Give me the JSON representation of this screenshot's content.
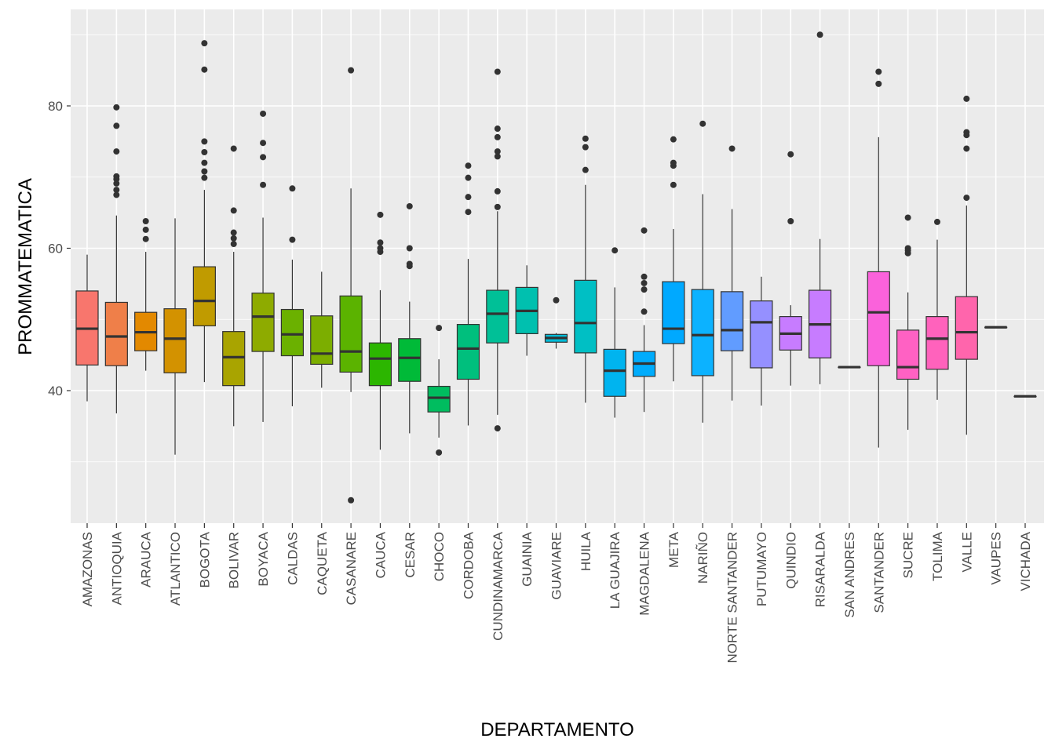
{
  "chart_data": {
    "type": "boxplot",
    "xlabel": "DEPARTAMENTO",
    "ylabel": "PROMMATEMATICA",
    "ylim": [
      21,
      93
    ],
    "y_ticks": [
      40,
      60,
      80
    ],
    "grid": true,
    "legend": "none",
    "panel_color": "#ebebeb",
    "grid_color": "#ffffff",
    "box_line_color": "#333333",
    "categories": [
      "AMAZONAS",
      "ANTIOQUIA",
      "ARAUCA",
      "ATLANTICO",
      "BOGOTA",
      "BOLIVAR",
      "BOYACA",
      "CALDAS",
      "CAQUETA",
      "CASANARE",
      "CAUCA",
      "CESAR",
      "CHOCO",
      "CORDOBA",
      "CUNDINAMARCA",
      "GUAINIA",
      "GUAVIARE",
      "HUILA",
      "LA GUAJIRA",
      "MAGDALENA",
      "META",
      "NARIÑO",
      "NORTE SANTANDER",
      "PUTUMAYO",
      "QUINDIO",
      "RISARALDA",
      "SAN ANDRES",
      "SANTANDER",
      "SUCRE",
      "TOLIMA",
      "VALLE",
      "VAUPES",
      "VICHADA"
    ],
    "boxes": [
      {
        "color": "#F8766D",
        "whisker_low": 38.5,
        "q1": 43.6,
        "median": 48.7,
        "q3": 54.0,
        "whisker_high": 59.1,
        "outliers": []
      },
      {
        "color": "#EF7F49",
        "whisker_low": 36.8,
        "q1": 43.5,
        "median": 47.6,
        "q3": 52.4,
        "whisker_high": 64.6,
        "outliers": [
          67.5,
          68.2,
          69.1,
          69.7,
          70.1,
          73.6,
          77.2,
          79.8
        ]
      },
      {
        "color": "#E38900",
        "whisker_low": 42.8,
        "q1": 45.6,
        "median": 48.2,
        "q3": 51.0,
        "whisker_high": 59.5,
        "outliers": [
          61.3,
          62.6,
          63.8
        ]
      },
      {
        "color": "#D39200",
        "whisker_low": 31.0,
        "q1": 42.5,
        "median": 47.3,
        "q3": 51.5,
        "whisker_high": 64.2,
        "outliers": []
      },
      {
        "color": "#C09B00",
        "whisker_low": 41.2,
        "q1": 49.1,
        "median": 52.6,
        "q3": 57.4,
        "whisker_high": 68.2,
        "outliers": [
          69.9,
          70.8,
          72.0,
          73.5,
          75.0,
          85.1,
          88.8
        ]
      },
      {
        "color": "#A9A400",
        "whisker_low": 35.0,
        "q1": 40.7,
        "median": 44.7,
        "q3": 48.3,
        "whisker_high": 59.5,
        "outliers": [
          60.6,
          61.4,
          62.2,
          65.3,
          74.0
        ]
      },
      {
        "color": "#8EAB00",
        "whisker_low": 35.6,
        "q1": 45.5,
        "median": 50.4,
        "q3": 53.7,
        "whisker_high": 64.3,
        "outliers": [
          68.9,
          72.8,
          74.8,
          78.9
        ]
      },
      {
        "color": "#6BB100",
        "whisker_low": 37.8,
        "q1": 44.9,
        "median": 47.9,
        "q3": 51.4,
        "whisker_high": 58.4,
        "outliers": [
          61.2,
          68.4
        ]
      },
      {
        "color": "#7CAE00",
        "whisker_low": 40.4,
        "q1": 43.7,
        "median": 45.2,
        "q3": 50.5,
        "whisker_high": 56.7,
        "outliers": []
      },
      {
        "color": "#5BB300",
        "whisker_low": 39.8,
        "q1": 42.6,
        "median": 45.5,
        "q3": 53.3,
        "whisker_high": 68.4,
        "outliers": [
          24.6,
          85.0
        ]
      },
      {
        "color": "#2CB600",
        "whisker_low": 31.7,
        "q1": 40.7,
        "median": 44.5,
        "q3": 46.7,
        "whisker_high": 54.1,
        "outliers": [
          59.5,
          60.0,
          60.8,
          64.7
        ]
      },
      {
        "color": "#00BA38",
        "whisker_low": 34.0,
        "q1": 41.3,
        "median": 44.6,
        "q3": 47.3,
        "whisker_high": 52.5,
        "outliers": [
          57.5,
          57.8,
          60.0,
          65.9
        ]
      },
      {
        "color": "#00BD5F",
        "whisker_low": 33.4,
        "q1": 37.0,
        "median": 39.0,
        "q3": 40.6,
        "whisker_high": 44.4,
        "outliers": [
          31.3,
          48.8
        ]
      },
      {
        "color": "#00BF7D",
        "whisker_low": 35.1,
        "q1": 41.6,
        "median": 45.9,
        "q3": 49.3,
        "whisker_high": 58.5,
        "outliers": [
          65.1,
          67.2,
          69.9,
          71.6
        ]
      },
      {
        "color": "#00C097",
        "whisker_low": 36.6,
        "q1": 46.7,
        "median": 50.8,
        "q3": 54.1,
        "whisker_high": 65.2,
        "outliers": [
          34.7,
          65.8,
          68.0,
          72.9,
          73.6,
          75.6,
          76.8,
          84.8
        ]
      },
      {
        "color": "#00C0AF",
        "whisker_low": 44.9,
        "q1": 48.0,
        "median": 51.2,
        "q3": 54.5,
        "whisker_high": 57.6,
        "outliers": []
      },
      {
        "color": "#00BCD8",
        "whisker_low": 45.9,
        "q1": 46.8,
        "median": 47.4,
        "q3": 47.9,
        "whisker_high": 48.1,
        "outliers": [
          52.7
        ]
      },
      {
        "color": "#00BFC4",
        "whisker_low": 38.3,
        "q1": 45.3,
        "median": 49.5,
        "q3": 55.5,
        "whisker_high": 68.9,
        "outliers": [
          71.0,
          74.2,
          75.4
        ]
      },
      {
        "color": "#00B4EF",
        "whisker_low": 36.2,
        "q1": 39.2,
        "median": 42.8,
        "q3": 45.8,
        "whisker_high": 54.5,
        "outliers": [
          59.7
        ]
      },
      {
        "color": "#00ACFC",
        "whisker_low": 37.0,
        "q1": 42.0,
        "median": 43.8,
        "q3": 45.5,
        "whisker_high": 49.2,
        "outliers": [
          51.1,
          54.2,
          55.1,
          56.0,
          62.5
        ]
      },
      {
        "color": "#00A9FF",
        "whisker_low": 41.3,
        "q1": 46.6,
        "median": 48.7,
        "q3": 55.3,
        "whisker_high": 62.7,
        "outliers": [
          68.9,
          71.6,
          72.0,
          75.3
        ]
      },
      {
        "color": "#0CB2FF",
        "whisker_low": 35.5,
        "q1": 42.1,
        "median": 47.8,
        "q3": 54.2,
        "whisker_high": 67.6,
        "outliers": [
          77.5
        ]
      },
      {
        "color": "#619CFF",
        "whisker_low": 38.6,
        "q1": 45.6,
        "median": 48.5,
        "q3": 53.9,
        "whisker_high": 65.5,
        "outliers": [
          74.0
        ]
      },
      {
        "color": "#9590FF",
        "whisker_low": 37.9,
        "q1": 43.2,
        "median": 49.6,
        "q3": 52.6,
        "whisker_high": 56.0,
        "outliers": []
      },
      {
        "color": "#C77CFF",
        "whisker_low": 40.7,
        "q1": 45.7,
        "median": 48.0,
        "q3": 50.4,
        "whisker_high": 52.0,
        "outliers": [
          63.8,
          73.2
        ]
      },
      {
        "color": "#C77CFF",
        "whisker_low": 40.9,
        "q1": 44.6,
        "median": 49.3,
        "q3": 54.1,
        "whisker_high": 61.3,
        "outliers": [
          90.0
        ]
      },
      {
        "color": "#E76BF3",
        "whisker_low": 43.3,
        "q1": 43.3,
        "median": 43.3,
        "q3": 43.3,
        "whisker_high": 43.3,
        "outliers": []
      },
      {
        "color": "#FA62DB",
        "whisker_low": 32.0,
        "q1": 43.5,
        "median": 51.0,
        "q3": 56.7,
        "whisker_high": 75.6,
        "outliers": [
          83.1,
          84.8
        ]
      },
      {
        "color": "#FF61C3",
        "whisker_low": 34.5,
        "q1": 41.6,
        "median": 43.3,
        "q3": 48.5,
        "whisker_high": 53.8,
        "outliers": [
          59.3,
          59.7,
          60.0,
          64.3
        ]
      },
      {
        "color": "#FF62BC",
        "whisker_low": 38.7,
        "q1": 43.0,
        "median": 47.3,
        "q3": 50.4,
        "whisker_high": 61.2,
        "outliers": [
          63.7
        ]
      },
      {
        "color": "#FF65AC",
        "whisker_low": 33.8,
        "q1": 44.4,
        "median": 48.2,
        "q3": 53.2,
        "whisker_high": 66.0,
        "outliers": [
          67.1,
          74.0,
          75.9,
          76.3,
          81.0
        ]
      },
      {
        "color": "#FF6C91",
        "whisker_low": 48.9,
        "q1": 48.9,
        "median": 48.9,
        "q3": 48.9,
        "whisker_high": 48.9,
        "outliers": []
      },
      {
        "color": "#FF6C91",
        "whisker_low": 39.2,
        "q1": 39.2,
        "median": 39.2,
        "q3": 39.2,
        "whisker_high": 39.2,
        "outliers": []
      }
    ]
  }
}
